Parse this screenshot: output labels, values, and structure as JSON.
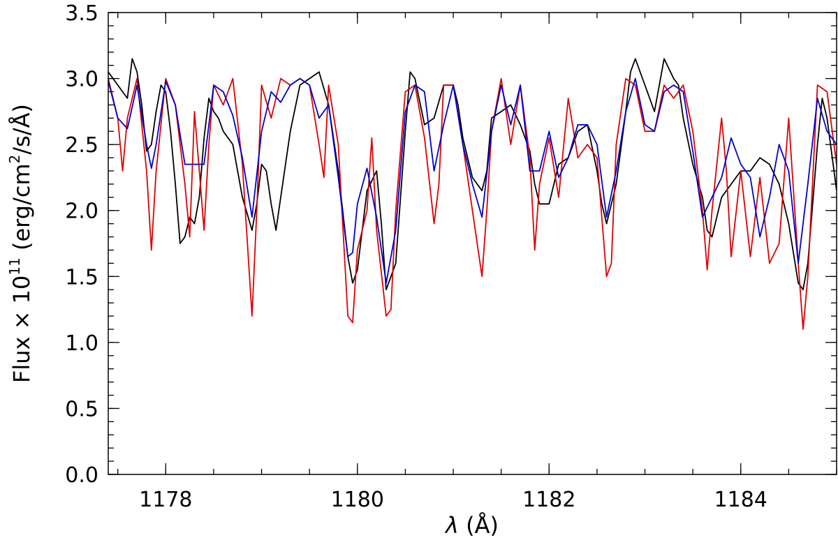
{
  "chart_data": {
    "type": "line",
    "xlabel_symbol": "λ",
    "xlabel_unit": "(Å)",
    "ylabel_prefix": "Flux × 10",
    "ylabel_exponent": "11",
    "ylabel_unit_pre": " (erg/cm",
    "ylabel_unit_exp": "2",
    "ylabel_unit_post": "/s/Å)",
    "xlim": [
      1177.4,
      1185.0
    ],
    "ylim": [
      0.0,
      3.5
    ],
    "x_ticks": [
      1178,
      1180,
      1182,
      1184
    ],
    "x_tick_labels": [
      "1178",
      "1180",
      "1182",
      "1184"
    ],
    "x_minor_step": 0.5,
    "y_ticks": [
      0.0,
      0.5,
      1.0,
      1.5,
      2.0,
      2.5,
      3.0,
      3.5
    ],
    "y_tick_labels": [
      "0.0",
      "0.5",
      "1.0",
      "1.5",
      "2.0",
      "2.5",
      "3.0",
      "3.5"
    ],
    "y_minor_step": 0.1,
    "grid": false,
    "series": [
      {
        "color": "#000000",
        "x": [
          1177.4,
          1177.5,
          1177.6,
          1177.65,
          1177.7,
          1177.75,
          1177.8,
          1177.85,
          1177.9,
          1177.95,
          1178.0,
          1178.05,
          1178.1,
          1178.15,
          1178.2,
          1178.25,
          1178.3,
          1178.35,
          1178.4,
          1178.45,
          1178.5,
          1178.55,
          1178.6,
          1178.7,
          1178.8,
          1178.9,
          1178.95,
          1179.0,
          1179.05,
          1179.1,
          1179.15,
          1179.2,
          1179.3,
          1179.4,
          1179.5,
          1179.6,
          1179.7,
          1179.8,
          1179.9,
          1179.95,
          1180.0,
          1180.1,
          1180.2,
          1180.25,
          1180.3,
          1180.4,
          1180.5,
          1180.55,
          1180.6,
          1180.7,
          1180.8,
          1180.9,
          1181.0,
          1181.05,
          1181.1,
          1181.2,
          1181.3,
          1181.35,
          1181.4,
          1181.5,
          1181.6,
          1181.7,
          1181.8,
          1181.85,
          1181.9,
          1182.0,
          1182.1,
          1182.2,
          1182.3,
          1182.4,
          1182.5,
          1182.55,
          1182.6,
          1182.7,
          1182.8,
          1182.85,
          1182.9,
          1183.0,
          1183.1,
          1183.2,
          1183.3,
          1183.35,
          1183.4,
          1183.5,
          1183.6,
          1183.65,
          1183.7,
          1183.8,
          1183.9,
          1184.0,
          1184.1,
          1184.2,
          1184.3,
          1184.4,
          1184.5,
          1184.6,
          1184.65,
          1184.7,
          1184.8,
          1184.85,
          1184.9,
          1185.0
        ],
        "y": [
          3.05,
          2.95,
          2.85,
          3.15,
          3.05,
          2.8,
          2.45,
          2.5,
          2.75,
          2.95,
          2.9,
          2.6,
          2.2,
          1.75,
          1.8,
          1.95,
          1.9,
          2.1,
          2.55,
          2.85,
          2.75,
          2.7,
          2.6,
          2.5,
          2.1,
          1.85,
          2.05,
          2.35,
          2.3,
          2.05,
          1.85,
          2.1,
          2.6,
          2.95,
          3.0,
          3.05,
          2.8,
          2.3,
          1.65,
          1.45,
          1.55,
          2.15,
          2.3,
          1.9,
          1.4,
          1.6,
          2.6,
          3.05,
          3.0,
          2.65,
          2.7,
          2.95,
          2.95,
          2.8,
          2.55,
          2.25,
          2.15,
          2.3,
          2.7,
          2.75,
          2.8,
          2.65,
          2.45,
          2.2,
          2.05,
          2.05,
          2.35,
          2.4,
          2.6,
          2.65,
          2.3,
          2.05,
          1.9,
          2.2,
          2.75,
          3.05,
          3.15,
          2.95,
          2.75,
          3.15,
          3.0,
          2.95,
          2.7,
          2.35,
          2.1,
          1.85,
          1.8,
          2.1,
          2.2,
          2.3,
          2.3,
          2.4,
          2.35,
          2.2,
          1.9,
          1.45,
          1.4,
          1.6,
          2.5,
          2.85,
          2.7,
          2.15
        ]
      },
      {
        "color": "#dd0000",
        "x": [
          1177.4,
          1177.5,
          1177.55,
          1177.6,
          1177.7,
          1177.8,
          1177.85,
          1177.9,
          1178.0,
          1178.1,
          1178.2,
          1178.25,
          1178.3,
          1178.35,
          1178.4,
          1178.45,
          1178.5,
          1178.6,
          1178.7,
          1178.8,
          1178.9,
          1178.95,
          1179.0,
          1179.1,
          1179.2,
          1179.3,
          1179.4,
          1179.5,
          1179.6,
          1179.65,
          1179.7,
          1179.8,
          1179.9,
          1179.95,
          1180.0,
          1180.1,
          1180.15,
          1180.2,
          1180.3,
          1180.35,
          1180.4,
          1180.5,
          1180.6,
          1180.7,
          1180.8,
          1180.85,
          1180.9,
          1181.0,
          1181.1,
          1181.2,
          1181.3,
          1181.35,
          1181.4,
          1181.5,
          1181.6,
          1181.7,
          1181.8,
          1181.85,
          1181.9,
          1182.0,
          1182.1,
          1182.2,
          1182.3,
          1182.4,
          1182.5,
          1182.6,
          1182.65,
          1182.7,
          1182.8,
          1182.9,
          1183.0,
          1183.1,
          1183.2,
          1183.3,
          1183.4,
          1183.5,
          1183.6,
          1183.65,
          1183.7,
          1183.8,
          1183.85,
          1183.9,
          1184.0,
          1184.1,
          1184.2,
          1184.3,
          1184.4,
          1184.5,
          1184.6,
          1184.65,
          1184.7,
          1184.8,
          1184.9,
          1185.0
        ],
        "y": [
          3.0,
          2.7,
          2.3,
          2.7,
          3.0,
          2.3,
          1.7,
          2.3,
          3.0,
          2.8,
          2.2,
          1.8,
          2.75,
          2.3,
          1.85,
          2.5,
          2.95,
          2.8,
          3.0,
          2.35,
          1.2,
          2.0,
          2.95,
          2.7,
          3.0,
          2.95,
          3.0,
          2.95,
          2.5,
          2.25,
          2.95,
          2.5,
          1.2,
          1.15,
          1.7,
          2.0,
          2.55,
          1.85,
          1.2,
          1.25,
          2.0,
          2.9,
          2.95,
          2.55,
          1.9,
          2.2,
          2.95,
          2.95,
          2.5,
          2.0,
          1.5,
          2.0,
          2.6,
          3.0,
          2.5,
          2.95,
          2.4,
          1.7,
          2.2,
          2.55,
          2.1,
          2.85,
          2.4,
          2.5,
          2.4,
          1.5,
          1.6,
          2.5,
          3.0,
          2.95,
          2.6,
          2.6,
          2.95,
          2.85,
          2.95,
          2.6,
          2.0,
          1.55,
          2.0,
          2.7,
          2.3,
          1.65,
          2.3,
          1.65,
          2.25,
          1.6,
          1.75,
          2.7,
          1.6,
          1.1,
          1.5,
          2.95,
          2.9,
          2.35
        ]
      },
      {
        "color": "#0000cc",
        "x": [
          1177.4,
          1177.5,
          1177.6,
          1177.7,
          1177.8,
          1177.85,
          1177.9,
          1178.0,
          1178.1,
          1178.2,
          1178.3,
          1178.4,
          1178.5,
          1178.6,
          1178.7,
          1178.8,
          1178.9,
          1179.0,
          1179.1,
          1179.2,
          1179.3,
          1179.4,
          1179.5,
          1179.6,
          1179.7,
          1179.8,
          1179.9,
          1179.95,
          1180.0,
          1180.1,
          1180.2,
          1180.3,
          1180.4,
          1180.5,
          1180.6,
          1180.7,
          1180.8,
          1180.9,
          1181.0,
          1181.1,
          1181.2,
          1181.3,
          1181.4,
          1181.5,
          1181.6,
          1181.7,
          1181.8,
          1181.9,
          1182.0,
          1182.1,
          1182.2,
          1182.3,
          1182.4,
          1182.5,
          1182.6,
          1182.7,
          1182.8,
          1182.9,
          1183.0,
          1183.1,
          1183.2,
          1183.3,
          1183.4,
          1183.5,
          1183.6,
          1183.7,
          1183.8,
          1183.9,
          1184.0,
          1184.1,
          1184.2,
          1184.3,
          1184.4,
          1184.5,
          1184.6,
          1184.7,
          1184.8,
          1184.9,
          1185.0
        ],
        "y": [
          2.98,
          2.7,
          2.62,
          2.95,
          2.5,
          2.32,
          2.5,
          2.98,
          2.8,
          2.35,
          2.35,
          2.35,
          2.95,
          2.9,
          2.72,
          2.4,
          1.95,
          2.6,
          2.9,
          2.82,
          2.95,
          3.0,
          2.95,
          2.7,
          2.8,
          2.25,
          1.65,
          1.68,
          2.05,
          2.32,
          1.95,
          1.45,
          1.85,
          2.75,
          2.95,
          2.9,
          2.3,
          2.65,
          2.95,
          2.5,
          2.2,
          1.95,
          2.6,
          2.95,
          2.65,
          2.95,
          2.3,
          2.3,
          2.6,
          2.25,
          2.4,
          2.65,
          2.65,
          2.5,
          1.95,
          2.3,
          2.75,
          3.0,
          2.65,
          2.6,
          2.9,
          2.95,
          2.9,
          2.45,
          1.95,
          2.1,
          2.25,
          2.55,
          2.35,
          2.25,
          1.8,
          2.1,
          2.5,
          2.3,
          1.6,
          2.2,
          2.85,
          2.6,
          2.5
        ]
      }
    ]
  }
}
